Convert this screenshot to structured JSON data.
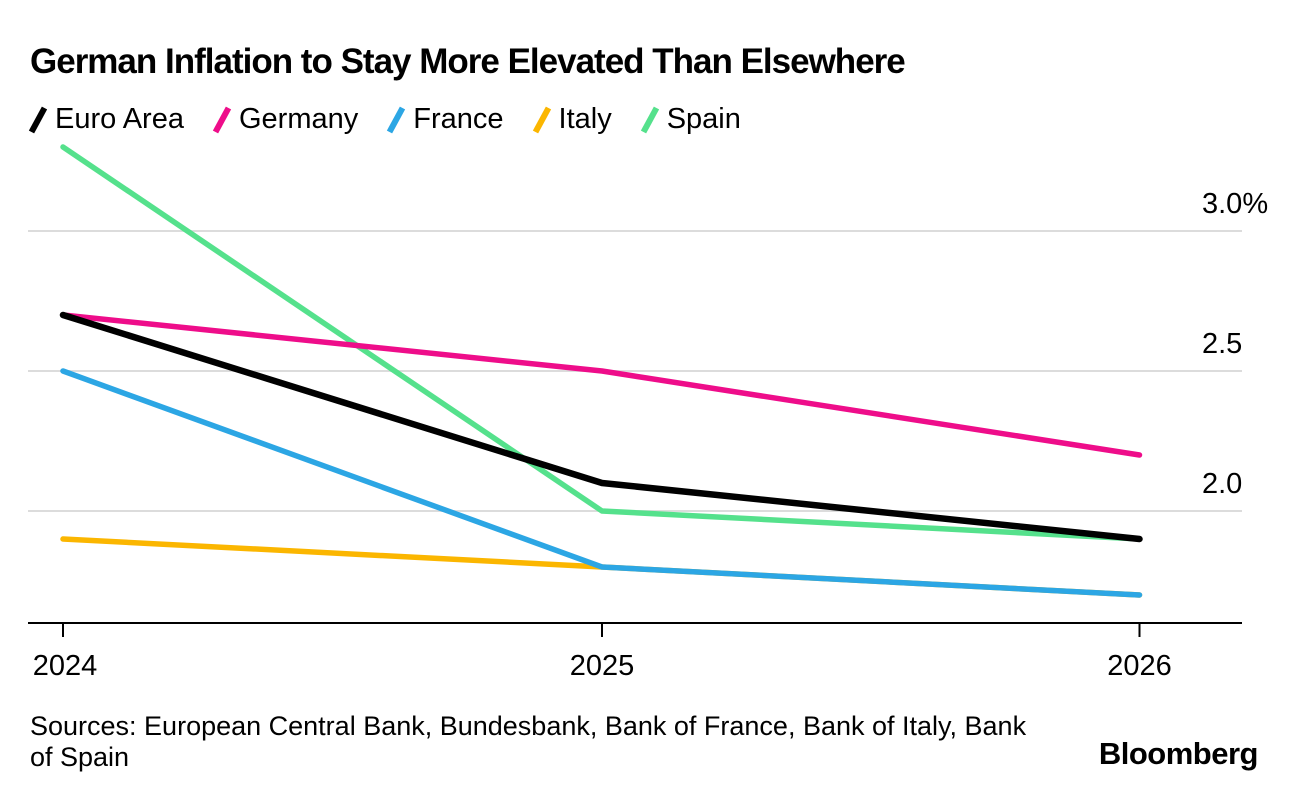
{
  "header": {
    "title": "German Inflation to Stay More Elevated Than Elsewhere"
  },
  "footer": {
    "sources": "Sources: European Central Bank, Bundesbank, Bank of France, Bank of Italy, Bank of Spain",
    "brand": "Bloomberg"
  },
  "colors": {
    "gridline": "#DCDCDC",
    "axis": "#000000",
    "text": "#000000",
    "euro_area": "#000000",
    "germany": "#EE0D8A",
    "france": "#2CA6E4",
    "italy": "#FBB600",
    "spain": "#55E18C"
  },
  "chart_data": {
    "type": "line",
    "title": "German Inflation to Stay More Elevated Than Elsewhere",
    "unit": "%",
    "x": [
      "2024",
      "2025",
      "2026"
    ],
    "series": [
      {
        "name": "Euro Area",
        "color": "#000000",
        "values": [
          2.7,
          2.1,
          1.9
        ]
      },
      {
        "name": "Germany",
        "color": "#EE0D8A",
        "values": [
          2.7,
          2.5,
          2.2
        ]
      },
      {
        "name": "France",
        "color": "#2CA6E4",
        "values": [
          2.5,
          1.8,
          1.7
        ]
      },
      {
        "name": "Italy",
        "color": "#FBB600",
        "values": [
          1.9,
          1.8,
          1.7
        ]
      },
      {
        "name": "Spain",
        "color": "#55E18C",
        "values": [
          3.3,
          2.0,
          1.9
        ]
      }
    ],
    "y_gridlines": [
      {
        "value": 3.0,
        "label": "3.0%"
      },
      {
        "value": 2.5,
        "label": "2.5"
      },
      {
        "value": 2.0,
        "label": "2.0"
      }
    ],
    "legend_position": "top",
    "grid": true,
    "ylim": [
      1.55,
      3.35
    ]
  }
}
